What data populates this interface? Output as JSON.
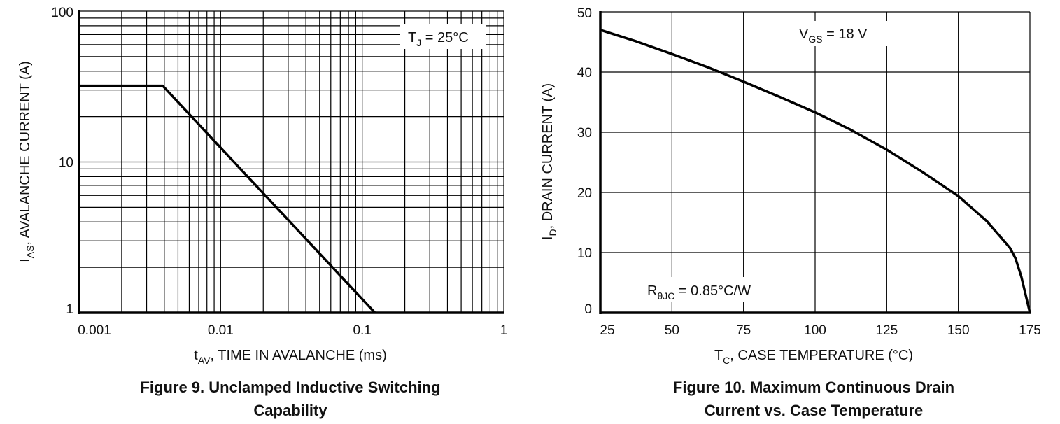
{
  "chart_data": [
    {
      "type": "line",
      "title": "Figure 9. Unclamped Inductive Switching Capability",
      "title_lines": [
        "Figure 9. Unclamped Inductive Switching",
        "Capability"
      ],
      "xlabel": {
        "main": "t",
        "sub": "AV",
        "rest": ", TIME IN AVALANCHE (ms)"
      },
      "ylabel": {
        "main": "I",
        "sub": "AS",
        "rest": ", AVALANCHE CURRENT (A)"
      },
      "x_scale": "log",
      "y_scale": "log",
      "xlim": [
        0.001,
        1
      ],
      "ylim": [
        1,
        100
      ],
      "x_ticks": [
        0.001,
        0.01,
        0.1,
        1
      ],
      "x_tick_labels": [
        "0.001",
        "0.01",
        "0.1",
        "1"
      ],
      "y_ticks": [
        1,
        10,
        100
      ],
      "y_tick_labels": [
        "1",
        "10",
        "100"
      ],
      "grid": true,
      "annotation": {
        "main": "T",
        "sub": "J",
        "rest": " = 25°C"
      },
      "series": [
        {
          "x": [
            0.001,
            0.0039,
            0.123
          ],
          "y": [
            32,
            32,
            1
          ]
        }
      ]
    },
    {
      "type": "line",
      "title": "Figure 10. Maximum Continuous Drain Current vs. Case Temperature",
      "title_lines": [
        "Figure 10. Maximum Continuous Drain",
        "Current vs. Case Temperature"
      ],
      "xlabel": {
        "main": "T",
        "sub": "C",
        "rest": ", CASE TEMPERATURE (°C)"
      },
      "ylabel": {
        "main": "I",
        "sub": "D",
        "rest": ", DRAIN CURRENT (A)"
      },
      "x_scale": "linear",
      "y_scale": "linear",
      "xlim": [
        25,
        175
      ],
      "ylim": [
        0,
        50
      ],
      "x_ticks": [
        25,
        50,
        75,
        100,
        125,
        150,
        175
      ],
      "x_tick_labels": [
        "25",
        "50",
        "75",
        "100",
        "125",
        "150",
        "175"
      ],
      "y_ticks": [
        0,
        10,
        20,
        30,
        40,
        50
      ],
      "y_tick_labels": [
        "0",
        "10",
        "20",
        "30",
        "40",
        "50"
      ],
      "grid": true,
      "annotations": [
        {
          "main": "V",
          "sub": "GS",
          "rest": " = 18 V"
        },
        {
          "main": "R",
          "sub": "θJC",
          "rest": " = 0.85°C/W"
        }
      ],
      "series": [
        {
          "x": [
            25,
            37.5,
            50,
            62.5,
            75,
            87.5,
            100,
            112.5,
            125,
            137.5,
            150,
            160,
            168,
            170,
            172,
            175
          ],
          "y": [
            47.0,
            45.1,
            43.0,
            40.8,
            38.4,
            35.9,
            33.3,
            30.4,
            27.1,
            23.4,
            19.4,
            15.2,
            10.8,
            9.0,
            6.0,
            0
          ]
        }
      ]
    }
  ]
}
